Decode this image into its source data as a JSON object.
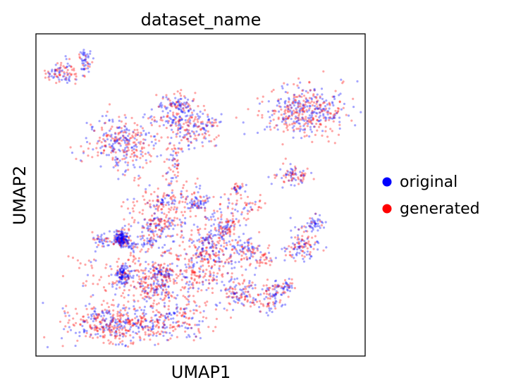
{
  "chart_data": {
    "type": "scatter",
    "title": "dataset_name",
    "xlabel": "UMAP1",
    "ylabel": "UMAP2",
    "xlim": [
      0,
      100
    ],
    "ylim": [
      0,
      100
    ],
    "grid": false,
    "ticks": false,
    "legend_placement": "right",
    "series": [
      {
        "name": "original",
        "color": "#0000ff"
      },
      {
        "name": "generated",
        "color": "#ff0000"
      }
    ],
    "clusters": [
      {
        "x": 8,
        "y": 88,
        "rx": 3.5,
        "ry": 2.5,
        "n": 90,
        "mix": 0.55
      },
      {
        "x": 15,
        "y": 92,
        "rx": 1.5,
        "ry": 3.5,
        "n": 50,
        "mix": 0.7
      },
      {
        "x": 43,
        "y": 78,
        "rx": 4.5,
        "ry": 2.5,
        "n": 110,
        "mix": 0.55
      },
      {
        "x": 48,
        "y": 70,
        "rx": 6.0,
        "ry": 4.0,
        "n": 130,
        "mix": 0.45
      },
      {
        "x": 42,
        "y": 60,
        "rx": 2.0,
        "ry": 6.0,
        "n": 60,
        "mix": 0.45
      },
      {
        "x": 43,
        "y": 73,
        "rx": 9.0,
        "ry": 2.0,
        "n": 80,
        "mix": 0.55
      },
      {
        "x": 26,
        "y": 66,
        "rx": 8.0,
        "ry": 6.0,
        "n": 300,
        "mix": 0.5
      },
      {
        "x": 82,
        "y": 76,
        "rx": 9.0,
        "ry": 5.5,
        "n": 420,
        "mix": 0.45
      },
      {
        "x": 79,
        "y": 56,
        "rx": 5.0,
        "ry": 2.0,
        "n": 80,
        "mix": 0.45
      },
      {
        "x": 61,
        "y": 52,
        "rx": 1.5,
        "ry": 1.5,
        "n": 30,
        "mix": 0.4
      },
      {
        "x": 49,
        "y": 48,
        "rx": 3.0,
        "ry": 3.0,
        "n": 80,
        "mix": 0.5
      },
      {
        "x": 38,
        "y": 45,
        "rx": 8.0,
        "ry": 8.0,
        "n": 140,
        "mix": 0.25
      },
      {
        "x": 37,
        "y": 40,
        "rx": 4.0,
        "ry": 2.5,
        "n": 80,
        "mix": 0.5
      },
      {
        "x": 57,
        "y": 39,
        "rx": 3.5,
        "ry": 4.0,
        "n": 120,
        "mix": 0.55
      },
      {
        "x": 64,
        "y": 33,
        "rx": 3.0,
        "ry": 3.0,
        "n": 80,
        "mix": 0.5
      },
      {
        "x": 81,
        "y": 34,
        "rx": 4.5,
        "ry": 3.5,
        "n": 110,
        "mix": 0.55
      },
      {
        "x": 26,
        "y": 36,
        "rx": 2.0,
        "ry": 1.5,
        "n": 30,
        "mix": 0.7
      },
      {
        "x": 39,
        "y": 26,
        "rx": 3.0,
        "ry": 1.5,
        "n": 50,
        "mix": 0.7
      },
      {
        "x": 48,
        "y": 28,
        "rx": 7.0,
        "ry": 10.0,
        "n": 240,
        "mix": 0.3
      },
      {
        "x": 55,
        "y": 30,
        "rx": 4.0,
        "ry": 5.0,
        "n": 90,
        "mix": 0.4
      },
      {
        "x": 36,
        "y": 22,
        "rx": 5.0,
        "ry": 4.0,
        "n": 150,
        "mix": 0.5
      },
      {
        "x": 24,
        "y": 10,
        "rx": 9.5,
        "ry": 4.0,
        "n": 380,
        "mix": 0.45
      },
      {
        "x": 41,
        "y": 11,
        "rx": 8.0,
        "ry": 5.0,
        "n": 200,
        "mix": 0.4
      },
      {
        "x": 27,
        "y": 25,
        "rx": 10.0,
        "ry": 8.0,
        "n": 160,
        "mix": 0.25
      },
      {
        "x": 62,
        "y": 20,
        "rx": 4.0,
        "ry": 4.0,
        "n": 110,
        "mix": 0.5
      },
      {
        "x": 71,
        "y": 18,
        "rx": 3.5,
        "ry": 3.0,
        "n": 90,
        "mix": 0.5
      },
      {
        "x": 76,
        "y": 22,
        "rx": 2.5,
        "ry": 1.5,
        "n": 40,
        "mix": 0.7
      },
      {
        "x": 26,
        "y": 24,
        "rx": 1.5,
        "ry": 1.5,
        "n": 25,
        "mix": 0.8
      },
      {
        "x": 27,
        "y": 26,
        "rx": 1.5,
        "ry": 1.5,
        "n": 25,
        "mix": 0.8
      },
      {
        "x": 26,
        "y": 26,
        "rx": 1.5,
        "ry": 1.5,
        "n": 25,
        "mix": 0.8
      },
      {
        "x": 27,
        "y": 24,
        "rx": 1.5,
        "ry": 1.5,
        "n": 25,
        "mix": 0.8
      },
      {
        "x": 29,
        "y": 34,
        "rx": 1.5,
        "ry": 1.2,
        "n": 25,
        "mix": 0.8
      },
      {
        "x": 26,
        "y": 38,
        "rx": 1.5,
        "ry": 1.5,
        "n": 25,
        "mix": 0.8
      },
      {
        "x": 27,
        "y": 36,
        "rx": 2.0,
        "ry": 1.5,
        "n": 25,
        "mix": 0.8
      },
      {
        "x": 26,
        "y": 35,
        "rx": 1.0,
        "ry": 1.5,
        "n": 20,
        "mix": 0.8
      },
      {
        "x": 26,
        "y": 37,
        "rx": 1.0,
        "ry": 1.0,
        "n": 20,
        "mix": 0.8
      },
      {
        "x": 25,
        "y": 36,
        "rx": 1.0,
        "ry": 1.0,
        "n": 20,
        "mix": 0.8
      },
      {
        "x": 26,
        "y": 36,
        "rx": 1.0,
        "ry": 1.0,
        "n": 20,
        "mix": 0.8
      },
      {
        "x": 26,
        "y": 36,
        "rx": 1.0,
        "ry": 1.0,
        "n": 20,
        "mix": 0.8
      },
      {
        "x": 20,
        "y": 36,
        "rx": 2.0,
        "ry": 1.5,
        "n": 35,
        "mix": 0.85
      },
      {
        "x": 35,
        "y": 35,
        "rx": 2.0,
        "ry": 1.5,
        "n": 30,
        "mix": 0.8
      },
      {
        "x": 52,
        "y": 36,
        "rx": 2.5,
        "ry": 2.0,
        "n": 35,
        "mix": 0.7
      },
      {
        "x": 39,
        "y": 48,
        "rx": 2.5,
        "ry": 2.5,
        "n": 40,
        "mix": 0.5
      },
      {
        "x": 69,
        "y": 30,
        "rx": 2.5,
        "ry": 2.0,
        "n": 30,
        "mix": 0.3
      },
      {
        "x": 63,
        "y": 46,
        "rx": 6.0,
        "ry": 4.0,
        "n": 60,
        "mix": 0.25
      },
      {
        "x": 85,
        "y": 41,
        "rx": 2.0,
        "ry": 2.0,
        "n": 45,
        "mix": 0.75
      }
    ]
  }
}
